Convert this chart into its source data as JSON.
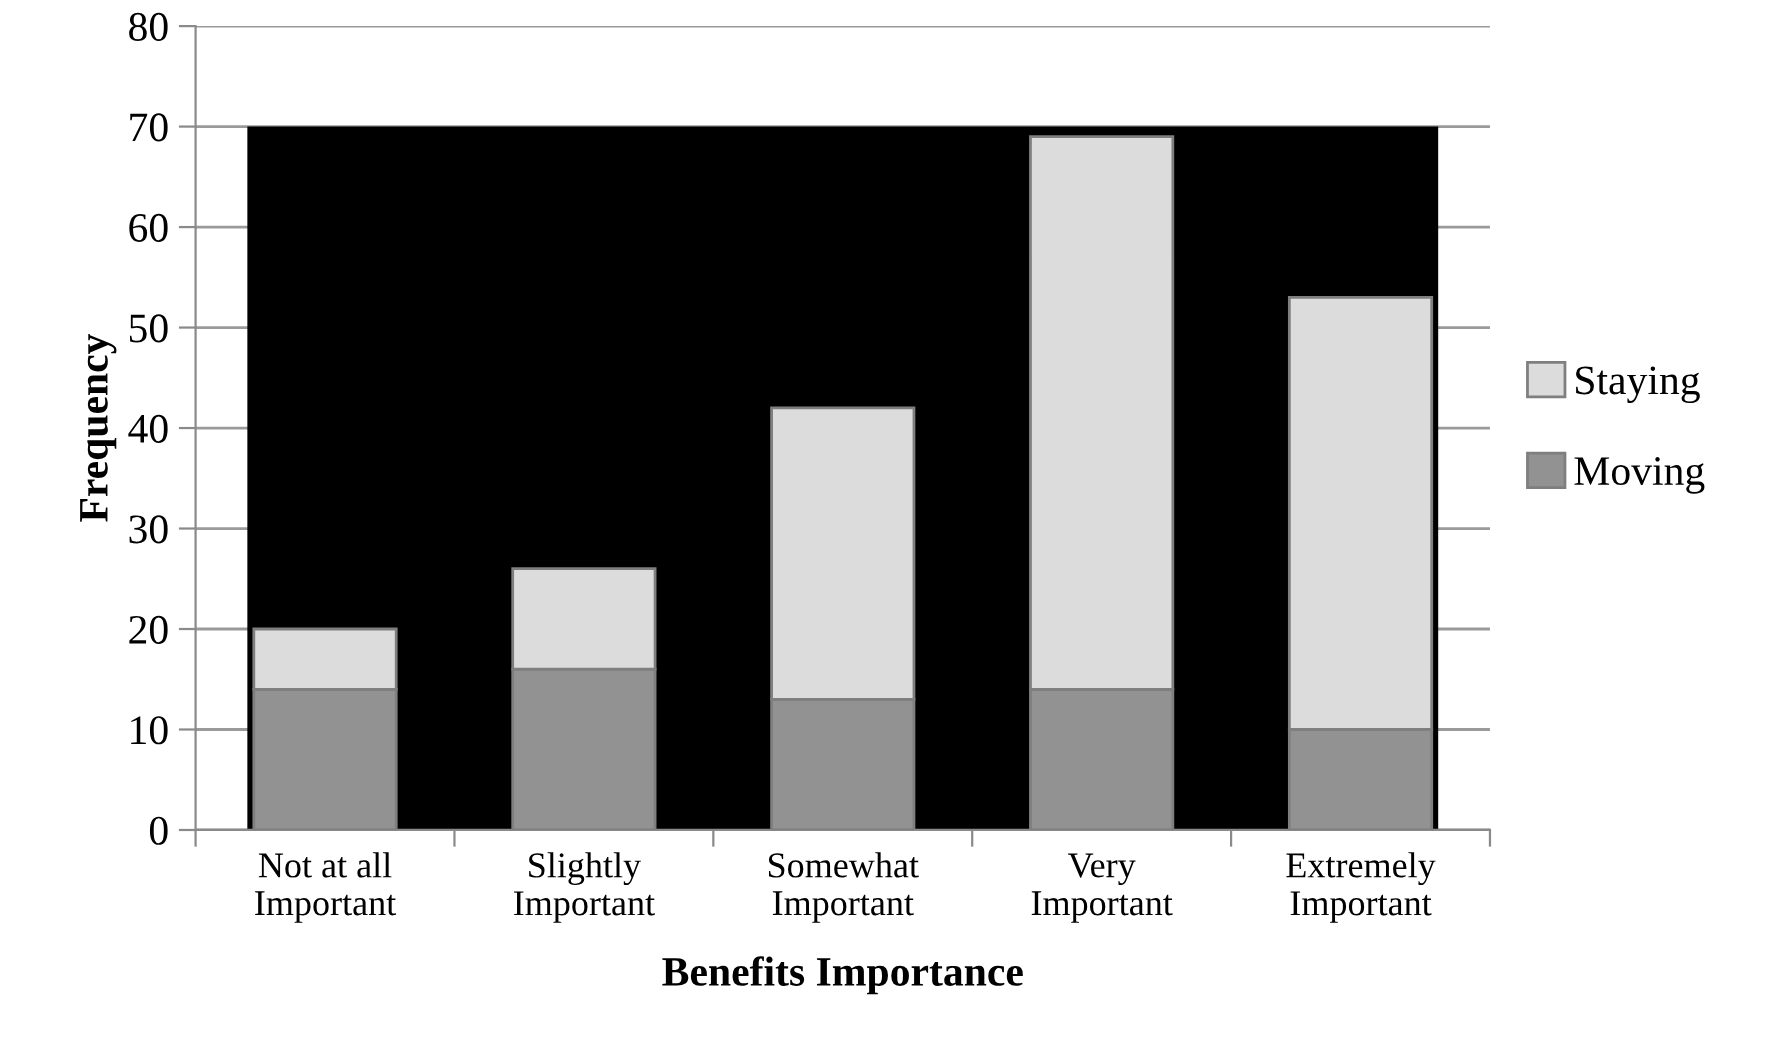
{
  "chart_data": {
    "type": "bar",
    "stacked": true,
    "xlabel": "Benefits Importance",
    "ylabel": "Frequency",
    "categories": [
      "Not at all\nImportant",
      "Slightly\nImportant",
      "Somewhat\nImportant",
      "Very\nImportant",
      "Extremely\nImportant"
    ],
    "series": [
      {
        "name": "Moving",
        "color": "#929292",
        "values": [
          14,
          16,
          13,
          14,
          10
        ]
      },
      {
        "name": "Staying",
        "color": "#dcdcdc",
        "values": [
          6,
          10,
          29,
          55,
          43
        ]
      }
    ],
    "ylim": [
      0,
      80
    ],
    "yticks": [
      0,
      10,
      20,
      30,
      40,
      50,
      60,
      70,
      80
    ],
    "grid": "y",
    "legend": "right",
    "bands": [
      {
        "axis": "y",
        "from": 0,
        "to": 70,
        "color": "#000000"
      }
    ]
  }
}
